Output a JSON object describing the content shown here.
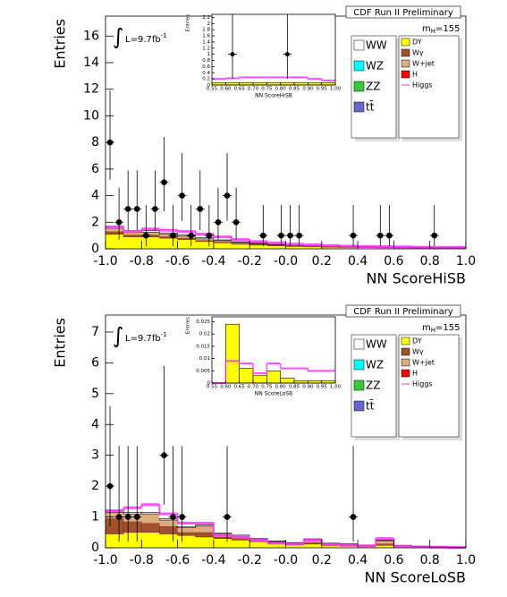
{
  "chart_data": [
    {
      "type": "histogram",
      "xlabel": "NN ScoreHiSB",
      "ylabel": "Entries",
      "annotations": {
        "run": "CDF Run II Preliminary",
        "mass": "m",
        "mass_sub": "H",
        "mass_value": "=155",
        "integral": "∫",
        "lumi": "L=9.7fb",
        "lumi_sup": "-1"
      },
      "xlim": [
        -1.0,
        1.0
      ],
      "ylim": [
        0,
        17.5
      ],
      "xticks": [
        {
          "value": -1.0,
          "label": "-1.0"
        },
        {
          "value": -0.8,
          "label": "-0.8"
        },
        {
          "value": -0.6,
          "label": "-0.6"
        },
        {
          "value": -0.4,
          "label": "-0.4"
        },
        {
          "value": -0.2,
          "label": "-0.2"
        },
        {
          "value": 0,
          "label": "-0.0"
        },
        0.2,
        0.4,
        0.6,
        0.8,
        {
          "value": 1.0,
          "label": "1.0"
        }
      ],
      "yticks": [
        0,
        2,
        4,
        6,
        8,
        10,
        12,
        14,
        16
      ],
      "bins": [
        -1.0,
        -0.9,
        -0.8,
        -0.7,
        -0.6,
        -0.5,
        -0.4,
        -0.3,
        -0.2,
        -0.1,
        0,
        0.1,
        0.2,
        0.3,
        0.4,
        0.5,
        0.6,
        0.7,
        0.8,
        0.9,
        1.0
      ],
      "series": [
        {
          "name": "WW",
          "color": "#ffffff",
          "values": [
            0.15,
            0.12,
            0.12,
            0.1,
            0.09,
            0.08,
            0.06,
            0.05,
            0.04,
            0.04,
            0.03,
            0.03,
            0.03,
            0.03,
            0.03,
            0.03,
            0.03,
            0.03,
            0.03,
            0.03
          ]
        },
        {
          "name": "WZ",
          "color": "#00ffff",
          "values": [
            0,
            0,
            0,
            0,
            0,
            0,
            0,
            0,
            0,
            0,
            0,
            0,
            0,
            0,
            0,
            0,
            0,
            0,
            0,
            0
          ]
        },
        {
          "name": "ZZ",
          "color": "#33cc33",
          "values": [
            0,
            0,
            0,
            0,
            0,
            0,
            0,
            0,
            0,
            0,
            0,
            0,
            0,
            0,
            0,
            0,
            0,
            0,
            0,
            0
          ]
        },
        {
          "name": "tt̄",
          "color": "#6666cc",
          "values": [
            0,
            0,
            0,
            0,
            0,
            0,
            0,
            0,
            0,
            0,
            0,
            0,
            0,
            0,
            0,
            0,
            0,
            0,
            0,
            0
          ]
        },
        {
          "name": "DY",
          "color": "#ffff00",
          "values": [
            1.1,
            0.9,
            0.9,
            0.8,
            0.7,
            0.55,
            0.45,
            0.35,
            0.28,
            0.22,
            0.18,
            0.15,
            0.12,
            0.1,
            0.09,
            0.08,
            0.07,
            0.06,
            0.05,
            0.05
          ]
        },
        {
          "name": "Wγ",
          "color": "#a0522d",
          "values": [
            0.2,
            0.15,
            0.15,
            0.12,
            0.1,
            0.08,
            0.06,
            0.05,
            0.04,
            0.03,
            0.03,
            0.02,
            0.02,
            0.02,
            0.02,
            0.02,
            0.01,
            0.01,
            0.01,
            0.01
          ]
        },
        {
          "name": "W+jet",
          "color": "#dcae7f",
          "values": [
            0.25,
            0.2,
            0.2,
            0.18,
            0.15,
            0.12,
            0.1,
            0.08,
            0.06,
            0.05,
            0.04,
            0.04,
            0.03,
            0.03,
            0.03,
            0.02,
            0.02,
            0.02,
            0.02,
            0.02
          ]
        },
        {
          "name": "H",
          "color": "#ff0000",
          "values": [
            0,
            0,
            0,
            0,
            0,
            0,
            0,
            0,
            0,
            0,
            0,
            0,
            0,
            0,
            0,
            0,
            0,
            0,
            0,
            0
          ]
        }
      ],
      "signal": {
        "name": "Higgs",
        "color": "#ff33ff",
        "values": [
          1.6,
          1.3,
          1.5,
          1.4,
          1.3,
          1.1,
          0.9,
          0.7,
          0.55,
          0.45,
          0.35,
          0.3,
          0.25,
          0.2,
          0.18,
          0.16,
          0.15,
          0.13,
          0.12,
          0.12
        ]
      },
      "data_points": {
        "x": [
          -0.975,
          -0.925,
          -0.875,
          -0.825,
          -0.775,
          -0.725,
          -0.675,
          -0.625,
          -0.575,
          -0.525,
          -0.475,
          -0.425,
          -0.375,
          -0.325,
          -0.275,
          -0.125,
          -0.025,
          0.025,
          0.075,
          0.375,
          0.525,
          0.575,
          0.825
        ],
        "values": [
          8,
          2,
          3,
          3,
          1,
          3,
          5,
          1,
          4,
          1,
          3,
          1,
          2,
          4,
          2,
          1,
          1,
          1,
          1,
          1,
          1,
          1,
          1
        ],
        "err_low": [
          2.8,
          1.3,
          1.6,
          1.6,
          0.8,
          1.6,
          2.2,
          0.8,
          1.9,
          0.8,
          1.6,
          0.8,
          1.3,
          1.9,
          1.3,
          0.8,
          0.8,
          0.8,
          0.8,
          0.8,
          0.8,
          0.8,
          0.8
        ],
        "err_high": [
          3.9,
          2.6,
          2.9,
          2.9,
          2.3,
          2.9,
          3.4,
          2.3,
          3.2,
          2.3,
          2.9,
          2.3,
          2.6,
          3.2,
          2.6,
          2.3,
          2.3,
          2.3,
          2.3,
          2.3,
          2.3,
          2.3,
          2.3
        ]
      }
    },
    {
      "type": "histogram",
      "xlabel": "NN ScoreHiSB",
      "ylabel": "Entries",
      "xlim": [
        0.55,
        1.0
      ],
      "ylim": [
        0,
        2.3
      ],
      "xticks": [
        0.55,
        {
          "value": 0.6,
          "label": "0.60"
        },
        0.65,
        {
          "value": 0.7,
          "label": "0.70"
        },
        0.75,
        {
          "value": 0.8,
          "label": "0.80"
        },
        0.85,
        {
          "value": 0.9,
          "label": "0.90"
        },
        0.95,
        {
          "value": 1.0,
          "label": "1.00"
        }
      ],
      "yticks": [
        0,
        0.2,
        0.4,
        0.6,
        0.8,
        1,
        1.2,
        1.4,
        1.6,
        1.8,
        2,
        2.2
      ],
      "bins": [
        0.55,
        0.6,
        0.65,
        0.7,
        0.75,
        0.8,
        0.85,
        0.9,
        0.95,
        1.0
      ],
      "series": [
        {
          "name": "DY",
          "color": "#ffff00",
          "values": [
            0.08,
            0.08,
            0.08,
            0.08,
            0.08,
            0.08,
            0.08,
            0.08,
            0.08
          ]
        }
      ],
      "signal": {
        "name": "Higgs",
        "color": "#ff33ff",
        "values": [
          0.2,
          0.22,
          0.25,
          0.25,
          0.25,
          0.25,
          0.25,
          0.2,
          0.15
        ]
      },
      "data_points": {
        "x": [
          0.625,
          0.825
        ],
        "values": [
          1,
          1
        ],
        "err_low": [
          0.8,
          0.8
        ],
        "err_high": [
          2.3,
          2.3
        ]
      }
    },
    {
      "type": "histogram",
      "xlabel": "NN ScoreLoSB",
      "ylabel": "Entries",
      "annotations": {
        "run": "CDF Run II Preliminary",
        "mass": "m",
        "mass_sub": "H",
        "mass_value": "=155",
        "integral": "∫",
        "lumi": "L=9.7fb",
        "lumi_sup": "-1"
      },
      "xlim": [
        -1.0,
        1.0
      ],
      "ylim": [
        0,
        7.55
      ],
      "xticks": [
        {
          "value": -1.0,
          "label": "-1.0"
        },
        {
          "value": -0.8,
          "label": "-0.8"
        },
        {
          "value": -0.6,
          "label": "-0.6"
        },
        {
          "value": -0.4,
          "label": "-0.4"
        },
        {
          "value": -0.2,
          "label": "-0.2"
        },
        {
          "value": 0,
          "label": "-0.0"
        },
        0.2,
        0.4,
        0.6,
        0.8,
        {
          "value": 1.0,
          "label": "1.0"
        }
      ],
      "yticks": [
        0,
        1,
        2,
        3,
        4,
        5,
        6,
        7
      ],
      "bins": [
        -1.0,
        -0.9,
        -0.8,
        -0.7,
        -0.6,
        -0.5,
        -0.4,
        -0.3,
        -0.2,
        -0.1,
        0,
        0.1,
        0.2,
        0.3,
        0.4,
        0.5,
        0.6,
        0.7,
        0.8,
        0.9,
        1.0
      ],
      "series": [
        {
          "name": "WW",
          "color": "#ffffff",
          "values": [
            0.05,
            0.05,
            0.05,
            0.04,
            0.04,
            0.04,
            0.03,
            0.03,
            0.02,
            0.02,
            0.02,
            0.02,
            0.02,
            0.02,
            0.01,
            0.02,
            0.01,
            0.01,
            0.01,
            0.01
          ]
        },
        {
          "name": "WZ",
          "color": "#00ffff",
          "values": [
            0,
            0,
            0,
            0,
            0,
            0,
            0,
            0,
            0,
            0,
            0,
            0,
            0,
            0,
            0,
            0,
            0,
            0,
            0,
            0
          ]
        },
        {
          "name": "ZZ",
          "color": "#33cc33",
          "values": [
            0,
            0,
            0,
            0,
            0,
            0,
            0,
            0,
            0,
            0,
            0,
            0,
            0,
            0,
            0,
            0,
            0,
            0,
            0,
            0
          ]
        },
        {
          "name": "tt̄",
          "color": "#6666cc",
          "values": [
            0,
            0,
            0,
            0,
            0,
            0,
            0,
            0,
            0,
            0,
            0,
            0,
            0,
            0,
            0,
            0,
            0,
            0,
            0,
            0
          ]
        },
        {
          "name": "DY",
          "color": "#ffff00",
          "values": [
            0.45,
            0.5,
            0.5,
            0.45,
            0.4,
            0.35,
            0.3,
            0.25,
            0.2,
            0.15,
            0.1,
            0.12,
            0.08,
            0.06,
            0.05,
            0.08,
            0.05,
            0.03,
            0.02,
            0.01
          ]
        },
        {
          "name": "Wγ",
          "color": "#a0522d",
          "values": [
            0.5,
            0.35,
            0.3,
            0.25,
            0.1,
            0.15,
            0.05,
            0.05,
            0.03,
            0.02,
            0.02,
            0.05,
            0.02,
            0.02,
            0.01,
            0.05,
            0,
            0,
            0,
            0
          ]
        },
        {
          "name": "W+jet",
          "color": "#dcae7f",
          "values": [
            0.2,
            0.25,
            0.3,
            0.2,
            0.15,
            0.2,
            0.1,
            0.08,
            0.05,
            0.03,
            0.03,
            0.1,
            0.03,
            0.03,
            0.02,
            0.1,
            0.02,
            0.01,
            0.01,
            0.01
          ]
        },
        {
          "name": "H",
          "color": "#ff0000",
          "values": [
            0,
            0,
            0,
            0,
            0,
            0,
            0,
            0,
            0,
            0,
            0,
            0,
            0,
            0,
            0,
            0,
            0,
            0,
            0,
            0
          ]
        }
      ],
      "signal": {
        "name": "Higgs",
        "color": "#ff33ff",
        "values": [
          1.2,
          1.3,
          1.4,
          1.1,
          0.8,
          0.8,
          0.4,
          0.35,
          0.25,
          0.15,
          0.12,
          0.25,
          0.1,
          0.08,
          0.06,
          0.3,
          0.05,
          0.03,
          0.02,
          0.01
        ]
      },
      "data_points": {
        "x": [
          -0.975,
          -0.925,
          -0.875,
          -0.825,
          -0.675,
          -0.625,
          -0.575,
          -0.325,
          0.375
        ],
        "values": [
          2,
          1,
          1,
          1,
          3,
          1,
          1,
          1,
          1
        ],
        "err_low": [
          1.3,
          0.8,
          0.8,
          0.8,
          1.6,
          0.8,
          0.8,
          0.8,
          0.8
        ],
        "err_high": [
          2.6,
          2.3,
          2.3,
          2.3,
          2.9,
          2.3,
          2.3,
          2.3,
          2.3
        ]
      }
    },
    {
      "type": "histogram",
      "xlabel": "NN ScoreLoSB",
      "ylabel": "Entries",
      "xlim": [
        0.55,
        1.0
      ],
      "ylim": [
        0,
        0.027
      ],
      "xticks": [
        0.55,
        {
          "value": 0.6,
          "label": "0.60"
        },
        0.65,
        {
          "value": 0.7,
          "label": "0.70"
        },
        0.75,
        {
          "value": 0.8,
          "label": "0.80"
        },
        0.85,
        {
          "value": 0.9,
          "label": "0.90"
        },
        0.95,
        {
          "value": 1.0,
          "label": "1.00"
        }
      ],
      "yticks": [
        0,
        0.005,
        0.01,
        0.015,
        0.02,
        0.025
      ],
      "bins": [
        0.55,
        0.6,
        0.65,
        0.7,
        0.75,
        0.8,
        0.85,
        0.9,
        0.95,
        1.0
      ],
      "series": [
        {
          "name": "DY",
          "color": "#ffff00",
          "values": [
            0,
            0.024,
            0.006,
            0.003,
            0.005,
            0.002,
            0.001,
            0.001,
            0.001
          ]
        }
      ],
      "signal": {
        "name": "Higgs",
        "color": "#ff33ff",
        "values": [
          0,
          0.009,
          0.008,
          0.004,
          0.008,
          0.006,
          0.006,
          0.005,
          0.005
        ]
      }
    }
  ]
}
